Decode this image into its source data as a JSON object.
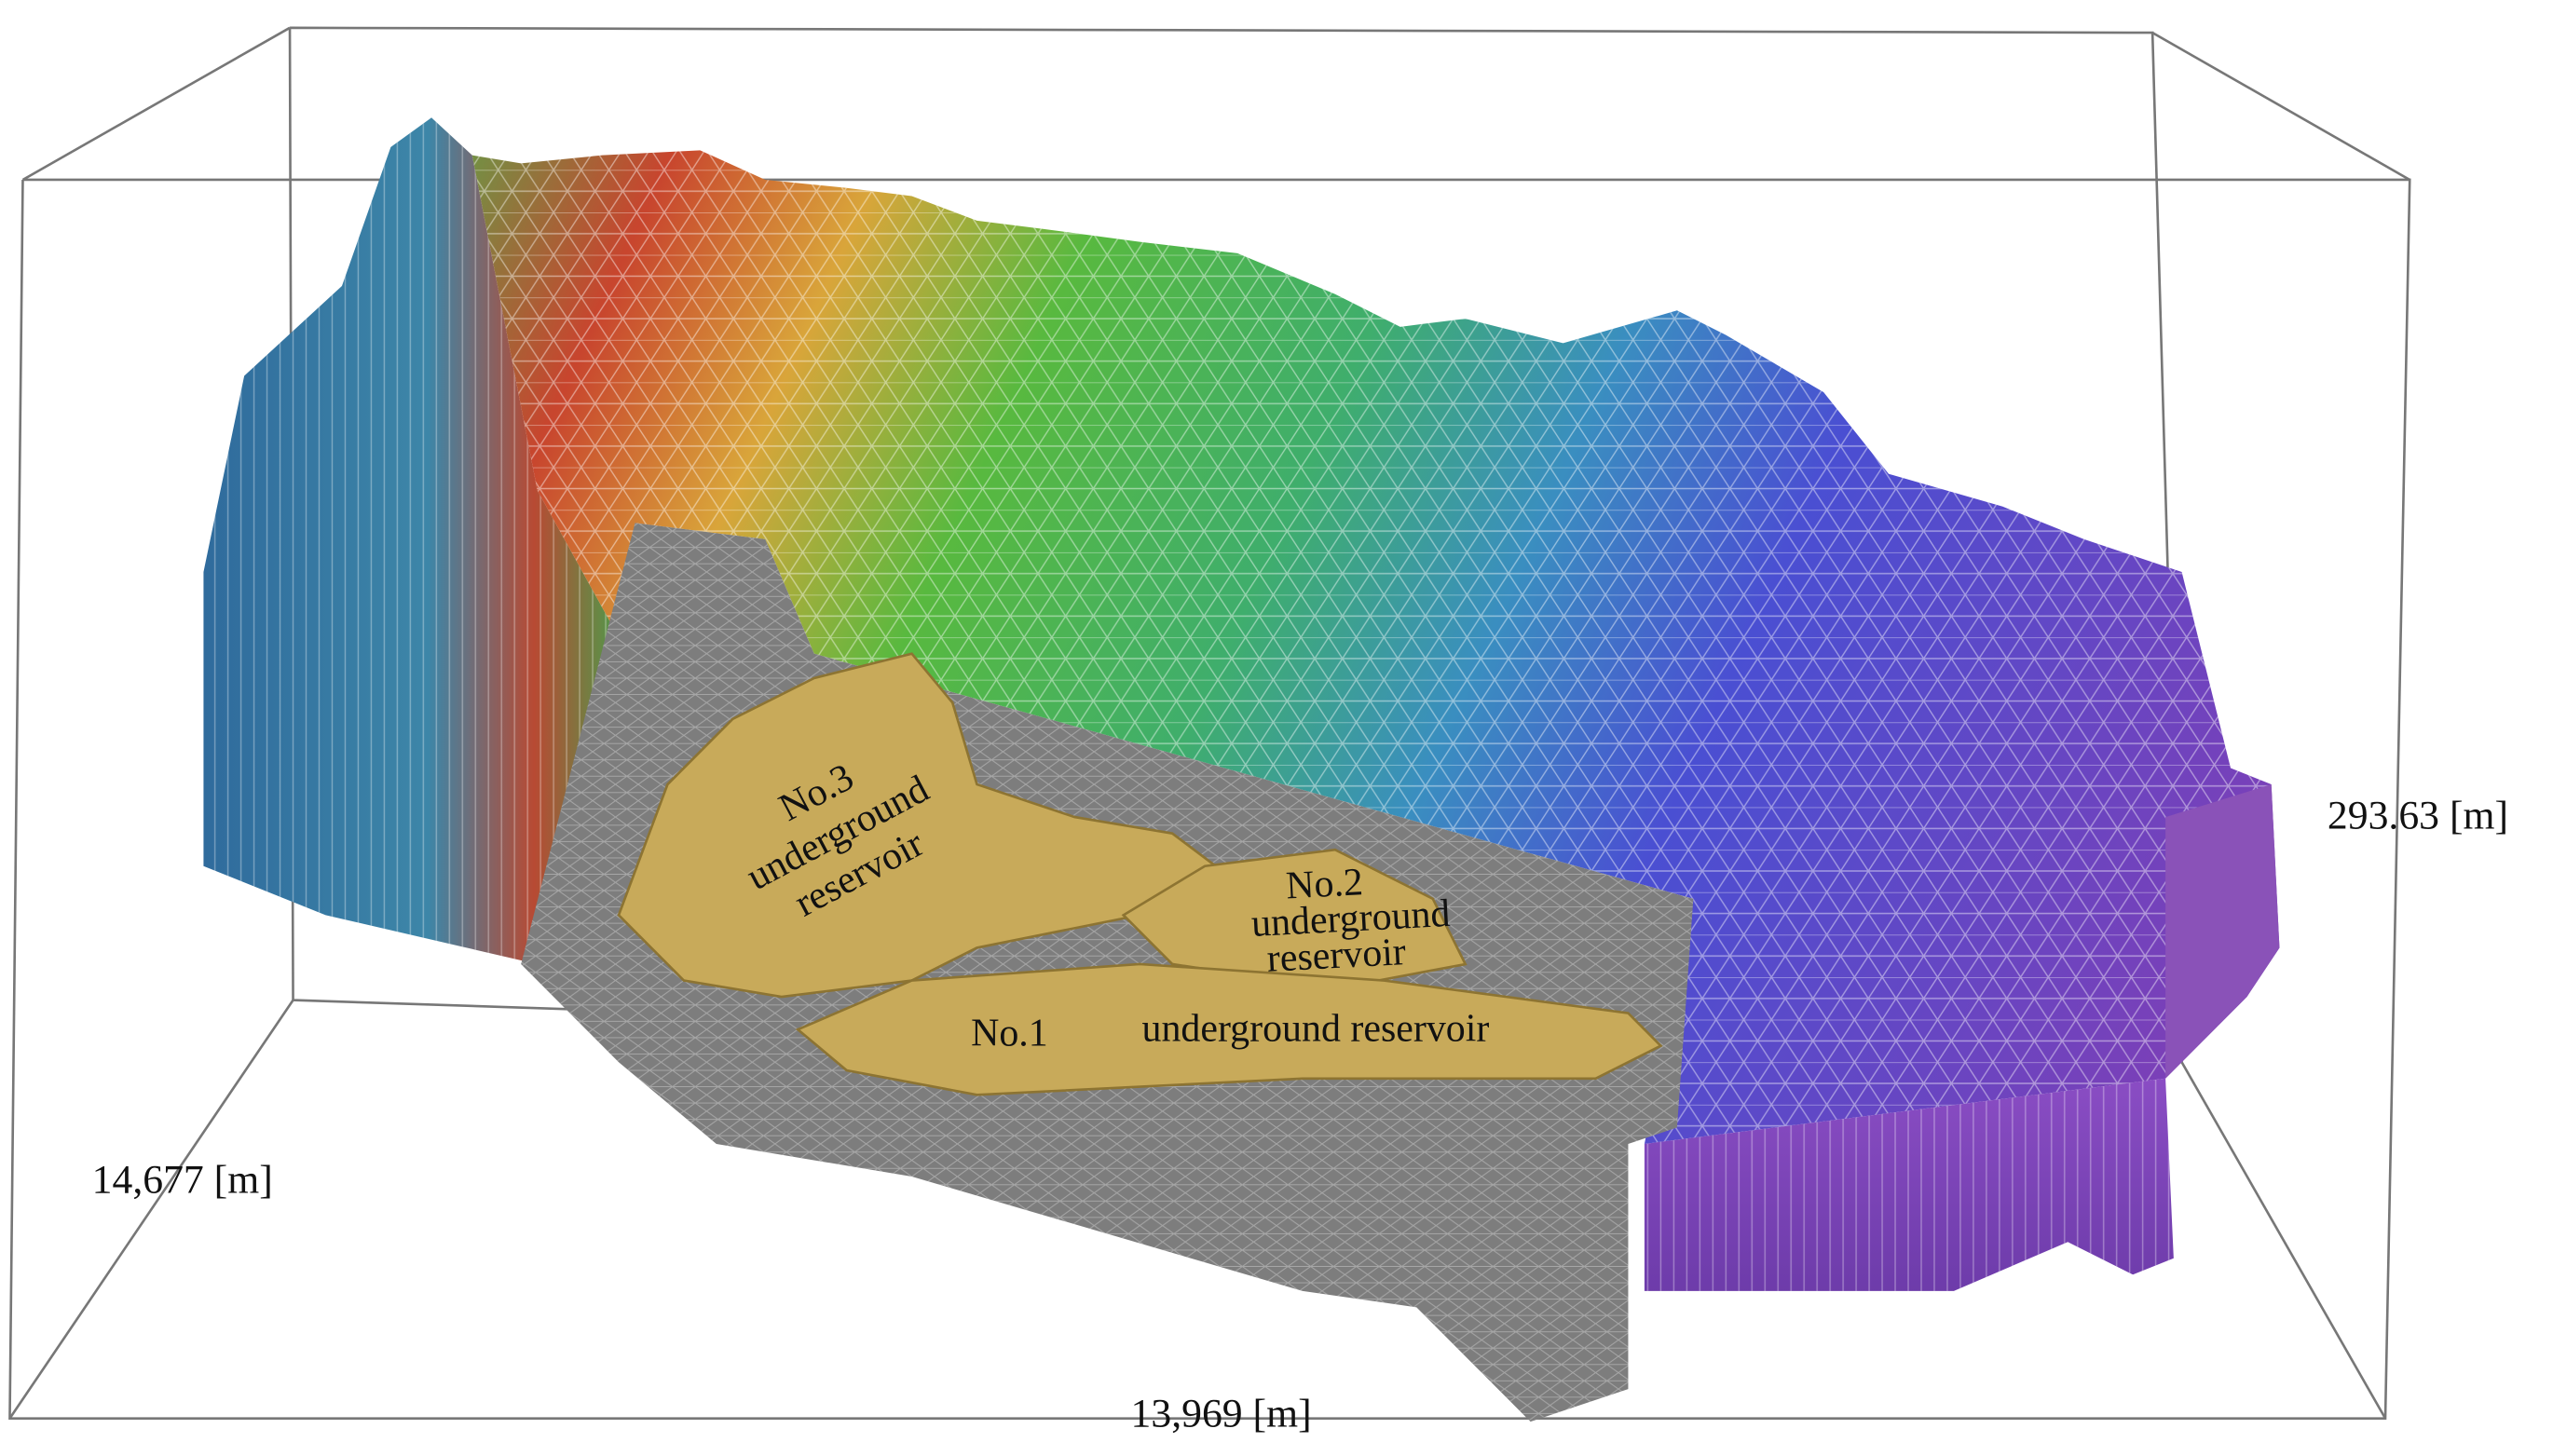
{
  "labels": {
    "height": "293.63 [m]",
    "depth": "14,677 [m]",
    "width": "13,969 [m]"
  },
  "reservoirs": [
    {
      "lines": [
        "No.1",
        "underground reservoir"
      ]
    },
    {
      "lines": [
        "No.2",
        "underground",
        "reservoir"
      ]
    },
    {
      "lines": [
        "No.3",
        "underground",
        "reservoir"
      ]
    }
  ]
}
